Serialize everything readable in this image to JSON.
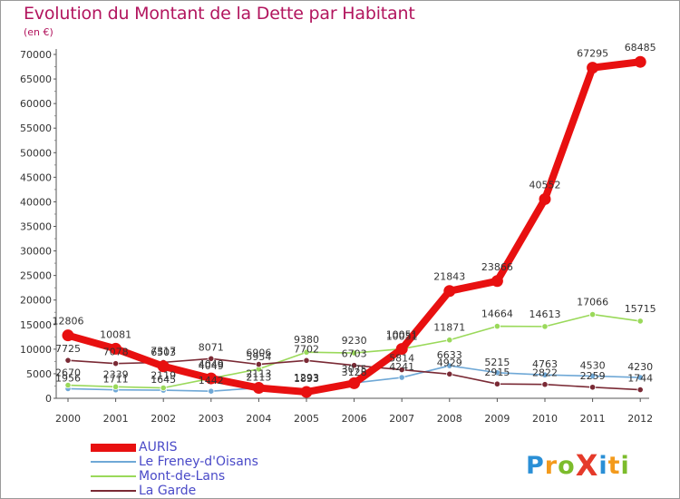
{
  "title": "Evolution du Montant de la Dette par Habitant",
  "subtitle": "(en €)",
  "logo": {
    "text": "ProXiti",
    "letters": [
      {
        "ch": "P",
        "color": "#2a8fd6"
      },
      {
        "ch": "r",
        "color": "#f39a1c"
      },
      {
        "ch": "o",
        "color": "#7cbc2c"
      },
      {
        "ch": "X",
        "color": "#e53a2a"
      },
      {
        "ch": "i",
        "color": "#2a8fd6"
      },
      {
        "ch": "t",
        "color": "#f39a1c"
      },
      {
        "ch": "i",
        "color": "#7cbc2c"
      }
    ]
  },
  "chart_data": {
    "type": "line",
    "x": [
      "2000",
      "2001",
      "2002",
      "2003",
      "2004",
      "2005",
      "2006",
      "2007",
      "2008",
      "2009",
      "2010",
      "2011",
      "2012"
    ],
    "ylim": [
      0,
      70000
    ],
    "yticks": [
      0,
      5000,
      10000,
      15000,
      20000,
      25000,
      30000,
      35000,
      40000,
      45000,
      50000,
      55000,
      60000,
      65000,
      70000
    ],
    "grid": false,
    "legend_position": "bottom-left",
    "series": [
      {
        "name": "AURIS",
        "color": "#e81010",
        "values": [
          12806,
          10081,
          6503,
          4049,
          2113,
          1293,
          3075,
          10051,
          21843,
          23866,
          40552,
          67295,
          68485
        ],
        "labels": [
          "12806",
          "10081",
          "6503",
          "4049",
          "2113",
          "1293",
          "3075",
          "10051",
          "21843",
          "23866",
          "40552",
          "67295",
          "68485"
        ]
      },
      {
        "name": "Le Freney-d'Oisans",
        "color": "#6fa8d6",
        "values": [
          1956,
          1711,
          1645,
          1442,
          2113,
          1893,
          3128,
          4241,
          6633,
          5215,
          4763,
          4530,
          4230
        ],
        "labels": [
          "1956",
          "1711",
          "1645",
          "1442",
          "2113",
          "1893",
          "3128",
          "4241",
          "6633",
          "5215",
          "4763",
          "4530",
          "4230"
        ]
      },
      {
        "name": "Mont-de-Lans",
        "color": "#9ad95a",
        "values": [
          2670,
          2339,
          2119,
          4049,
          5954,
          9380,
          9230,
          10051,
          11871,
          14664,
          14613,
          17066,
          15715
        ],
        "labels": [
          "2670",
          "2339",
          "2119",
          "4049",
          "5954",
          "9380",
          "9230",
          "10051",
          "11871",
          "14664",
          "14613",
          "17066",
          "15715"
        ]
      },
      {
        "name": "La Garde",
        "color": "#7a2a35",
        "values": [
          7725,
          7078,
          7317,
          8071,
          6906,
          7702,
          6703,
          5814,
          4929,
          2915,
          2822,
          2259,
          1744
        ],
        "labels": [
          "7725",
          "7078",
          "7317",
          "8071",
          "6906",
          "7702",
          "6703",
          "5814",
          "4929",
          "2915",
          "2822",
          "2259",
          "1744"
        ]
      }
    ]
  }
}
